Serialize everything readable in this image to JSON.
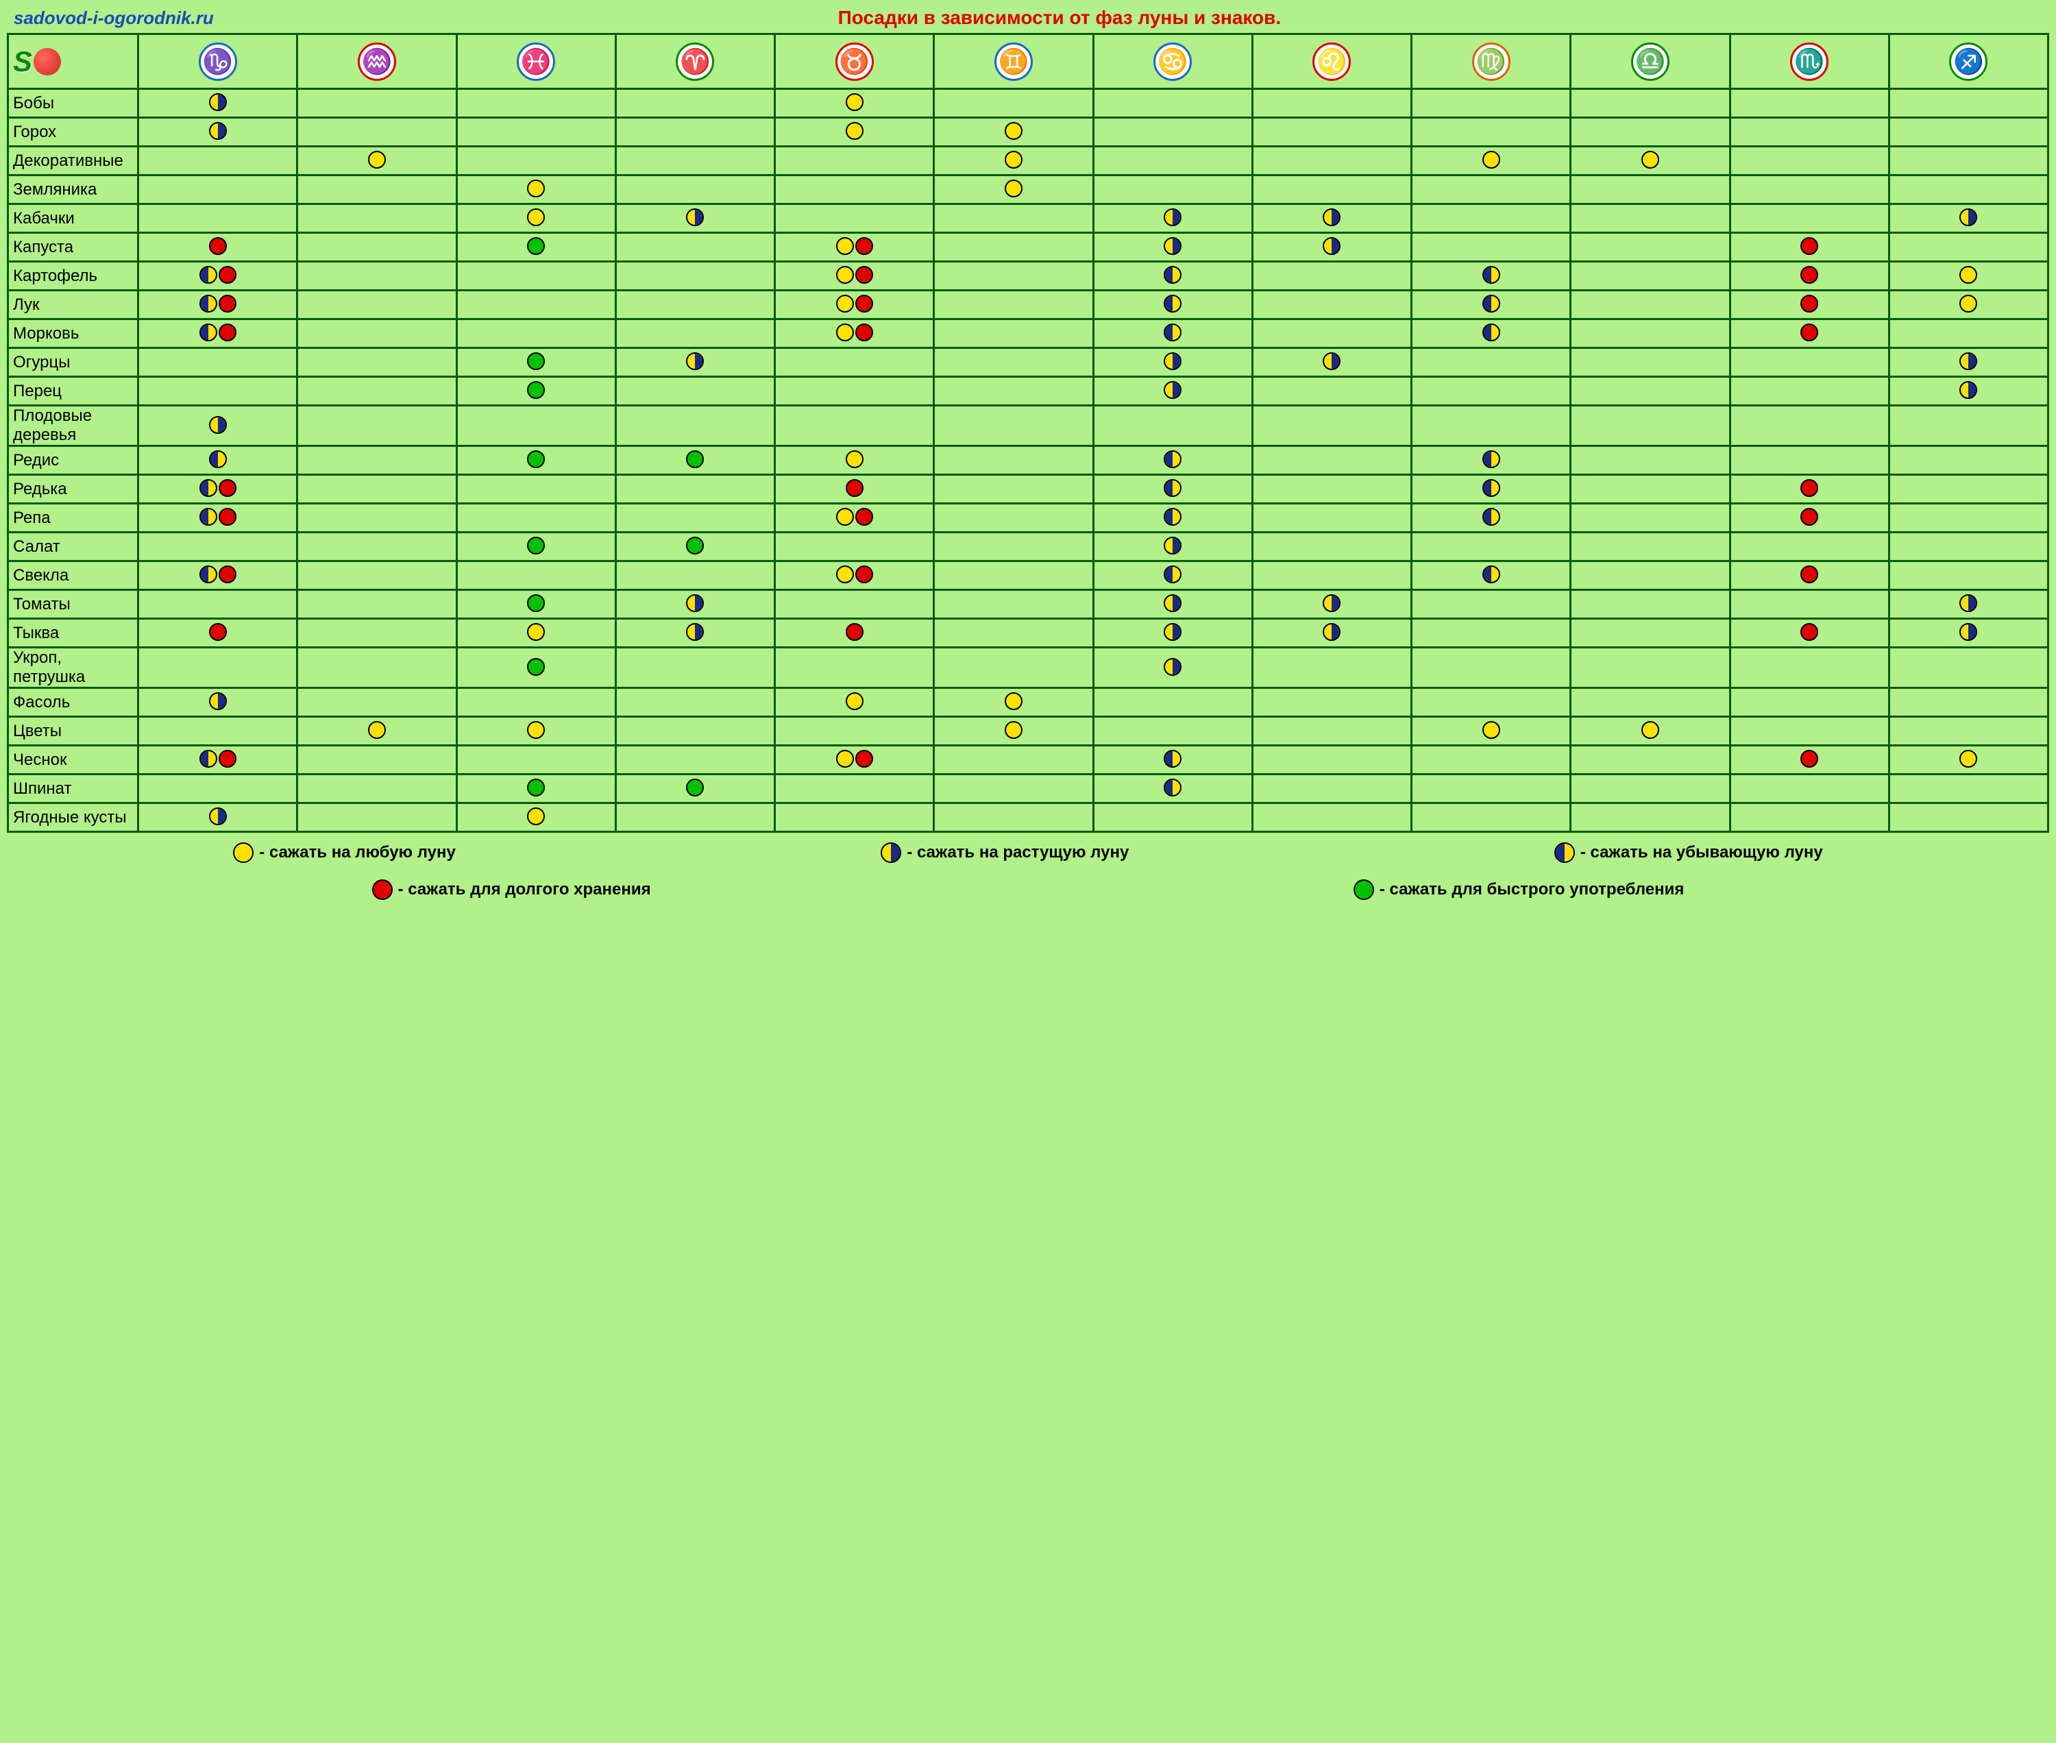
{
  "site_url": "sadovod-i-ogorodnik.ru",
  "title": "Посадки в зависимости от фаз луны и знаков.",
  "colors": {
    "bg": "#b2f08a",
    "grid": "#0a5a0a",
    "title": "#e00000",
    "url": "#1a4ab8",
    "yellow": "#ffe100",
    "red": "#e00000",
    "green": "#00c000",
    "navy": "#1a2a8a"
  },
  "moon_types": {
    "Y": {
      "label": "сажать на любую луну",
      "style": "full",
      "fill": "#ffe100"
    },
    "W": {
      "label": "сажать на растущую луну",
      "style": "half-r",
      "fill_left": "#ffe100",
      "fill_right": "#1a2a8a"
    },
    "D": {
      "label": "сажать на убывающую луну",
      "style": "half-l",
      "fill_left": "#1a2a8a",
      "fill_right": "#ffe100"
    },
    "R": {
      "label": "сажать для долгого хранения",
      "style": "full",
      "fill": "#e00000"
    },
    "G": {
      "label": "сажать для быстрого употребления",
      "style": "full",
      "fill": "#00c000"
    }
  },
  "zodiac": [
    {
      "name": "Козерог",
      "glyph": "♑",
      "border": "#1a6ac4",
      "color": "#1a6ac4"
    },
    {
      "name": "Водолей",
      "glyph": "♒",
      "border": "#e00000",
      "color": "#1a6ac4"
    },
    {
      "name": "Рыбы",
      "glyph": "♓",
      "border": "#1a6ac4",
      "color": "#1a6ac4"
    },
    {
      "name": "Овен",
      "glyph": "♈",
      "border": "#0a8a0a",
      "color": "#0a8a0a"
    },
    {
      "name": "Телец",
      "glyph": "♉",
      "border": "#e00000",
      "color": "#e00000"
    },
    {
      "name": "Близнецы",
      "glyph": "♊",
      "border": "#1a6ac4",
      "color": "#1a6ac4"
    },
    {
      "name": "Рак",
      "glyph": "♋",
      "border": "#1a6ac4",
      "color": "#1a6ac4"
    },
    {
      "name": "Лев",
      "glyph": "♌",
      "border": "#e00000",
      "color": "#e00000"
    },
    {
      "name": "Дева",
      "glyph": "♍",
      "border": "#e06000",
      "color": "#e06000"
    },
    {
      "name": "Весы",
      "glyph": "♎",
      "border": "#0a8a0a",
      "color": "#0a8a0a"
    },
    {
      "name": "Скорпион",
      "glyph": "♏",
      "border": "#e00000",
      "color": "#e00000"
    },
    {
      "name": "Стрелец",
      "glyph": "♐",
      "border": "#0a8a0a",
      "color": "#0a8a0a"
    }
  ],
  "rows": [
    {
      "label": "Бобы",
      "cells": [
        [
          "W"
        ],
        [],
        [],
        [],
        [
          "Y"
        ],
        [],
        [],
        [],
        [],
        [],
        [],
        []
      ]
    },
    {
      "label": "Горох",
      "cells": [
        [
          "W"
        ],
        [],
        [],
        [],
        [
          "Y"
        ],
        [
          "Y"
        ],
        [],
        [],
        [],
        [],
        [],
        []
      ]
    },
    {
      "label": "Декоративные",
      "cells": [
        [],
        [
          "Y"
        ],
        [],
        [],
        [],
        [
          "Y"
        ],
        [],
        [],
        [
          "Y"
        ],
        [
          "Y"
        ],
        [],
        []
      ]
    },
    {
      "label": "Земляника",
      "cells": [
        [],
        [],
        [
          "Y"
        ],
        [],
        [],
        [
          "Y"
        ],
        [],
        [],
        [],
        [],
        [],
        []
      ]
    },
    {
      "label": "Кабачки",
      "cells": [
        [],
        [],
        [
          "Y"
        ],
        [
          "W"
        ],
        [],
        [],
        [
          "W"
        ],
        [
          "W"
        ],
        [],
        [],
        [],
        [
          "W"
        ]
      ]
    },
    {
      "label": "Капуста",
      "cells": [
        [
          "R"
        ],
        [],
        [
          "G"
        ],
        [],
        [
          "Y",
          "R"
        ],
        [],
        [
          "W"
        ],
        [
          "W"
        ],
        [],
        [],
        [
          "R"
        ],
        []
      ]
    },
    {
      "label": "Картофель",
      "cells": [
        [
          "D",
          "R"
        ],
        [],
        [],
        [],
        [
          "Y",
          "R"
        ],
        [],
        [
          "D"
        ],
        [],
        [
          "D"
        ],
        [],
        [
          "R"
        ],
        [
          "Y"
        ]
      ]
    },
    {
      "label": "Лук",
      "cells": [
        [
          "D",
          "R"
        ],
        [],
        [],
        [],
        [
          "Y",
          "R"
        ],
        [],
        [
          "D"
        ],
        [],
        [
          "D"
        ],
        [],
        [
          "R"
        ],
        [
          "Y"
        ]
      ]
    },
    {
      "label": "Морковь",
      "cells": [
        [
          "D",
          "R"
        ],
        [],
        [],
        [],
        [
          "Y",
          "R"
        ],
        [],
        [
          "D"
        ],
        [],
        [
          "D"
        ],
        [],
        [
          "R"
        ],
        []
      ]
    },
    {
      "label": "Огурцы",
      "cells": [
        [],
        [],
        [
          "G"
        ],
        [
          "W"
        ],
        [],
        [],
        [
          "W"
        ],
        [
          "W"
        ],
        [],
        [],
        [],
        [
          "W"
        ]
      ]
    },
    {
      "label": "Перец",
      "cells": [
        [],
        [],
        [
          "G"
        ],
        [],
        [],
        [],
        [
          "W"
        ],
        [],
        [],
        [],
        [],
        [
          "W"
        ]
      ]
    },
    {
      "label": "Плодовые деревья",
      "cells": [
        [
          "W"
        ],
        [],
        [],
        [],
        [],
        [],
        [],
        [],
        [],
        [],
        [],
        []
      ]
    },
    {
      "label": "Редис",
      "cells": [
        [
          "D"
        ],
        [],
        [
          "G"
        ],
        [
          "G"
        ],
        [
          "Y"
        ],
        [],
        [
          "D"
        ],
        [],
        [
          "D"
        ],
        [],
        [],
        []
      ]
    },
    {
      "label": "Редька",
      "cells": [
        [
          "D",
          "R"
        ],
        [],
        [],
        [],
        [
          "R"
        ],
        [],
        [
          "D"
        ],
        [],
        [
          "D"
        ],
        [],
        [
          "R"
        ],
        []
      ]
    },
    {
      "label": "Репа",
      "cells": [
        [
          "D",
          "R"
        ],
        [],
        [],
        [],
        [
          "Y",
          "R"
        ],
        [],
        [
          "D"
        ],
        [],
        [
          "D"
        ],
        [],
        [
          "R"
        ],
        []
      ]
    },
    {
      "label": "Салат",
      "cells": [
        [],
        [],
        [
          "G"
        ],
        [
          "G"
        ],
        [],
        [],
        [
          "W"
        ],
        [],
        [],
        [],
        [],
        []
      ]
    },
    {
      "label": "Свекла",
      "cells": [
        [
          "D",
          "R"
        ],
        [],
        [],
        [],
        [
          "Y",
          "R"
        ],
        [],
        [
          "D"
        ],
        [],
        [
          "D"
        ],
        [],
        [
          "R"
        ],
        []
      ]
    },
    {
      "label": "Томаты",
      "cells": [
        [],
        [],
        [
          "G"
        ],
        [
          "W"
        ],
        [],
        [],
        [
          "W"
        ],
        [
          "W"
        ],
        [],
        [],
        [],
        [
          "W"
        ]
      ]
    },
    {
      "label": "Тыква",
      "cells": [
        [
          "R"
        ],
        [],
        [
          "Y"
        ],
        [
          "W"
        ],
        [
          "R"
        ],
        [],
        [
          "W"
        ],
        [
          "W"
        ],
        [],
        [],
        [
          "R"
        ],
        [
          "W"
        ]
      ]
    },
    {
      "label": "Укроп, петрушка",
      "cells": [
        [],
        [],
        [
          "G"
        ],
        [],
        [],
        [],
        [
          "W"
        ],
        [],
        [],
        [],
        [],
        []
      ]
    },
    {
      "label": "Фасоль",
      "cells": [
        [
          "W"
        ],
        [],
        [],
        [],
        [
          "Y"
        ],
        [
          "Y"
        ],
        [],
        [],
        [],
        [],
        [],
        []
      ]
    },
    {
      "label": "Цветы",
      "cells": [
        [],
        [
          "Y"
        ],
        [
          "Y"
        ],
        [],
        [],
        [
          "Y"
        ],
        [],
        [],
        [
          "Y"
        ],
        [
          "Y"
        ],
        [],
        []
      ]
    },
    {
      "label": "Чеснок",
      "cells": [
        [
          "D",
          "R"
        ],
        [],
        [],
        [],
        [
          "Y",
          "R"
        ],
        [],
        [
          "D"
        ],
        [],
        [],
        [],
        [
          "R"
        ],
        [
          "Y"
        ]
      ]
    },
    {
      "label": "Шпинат",
      "cells": [
        [],
        [],
        [
          "G"
        ],
        [
          "G"
        ],
        [],
        [],
        [
          "D"
        ],
        [],
        [],
        [],
        [],
        []
      ]
    },
    {
      "label": "Ягодные кусты",
      "cells": [
        [
          "W"
        ],
        [],
        [
          "Y"
        ],
        [],
        [],
        [],
        [],
        [],
        [],
        [],
        [],
        []
      ]
    }
  ],
  "legend_row1": [
    {
      "type": "Y",
      "text": "- сажать на любую луну"
    },
    {
      "type": "W",
      "text": "- сажать на растущую луну"
    },
    {
      "type": "D",
      "text": "- сажать на убывающую луну"
    }
  ],
  "legend_row2": [
    {
      "type": "R",
      "text": "- сажать для долгого хранения"
    },
    {
      "type": "G",
      "text": "- сажать для быстрого употребления"
    }
  ]
}
